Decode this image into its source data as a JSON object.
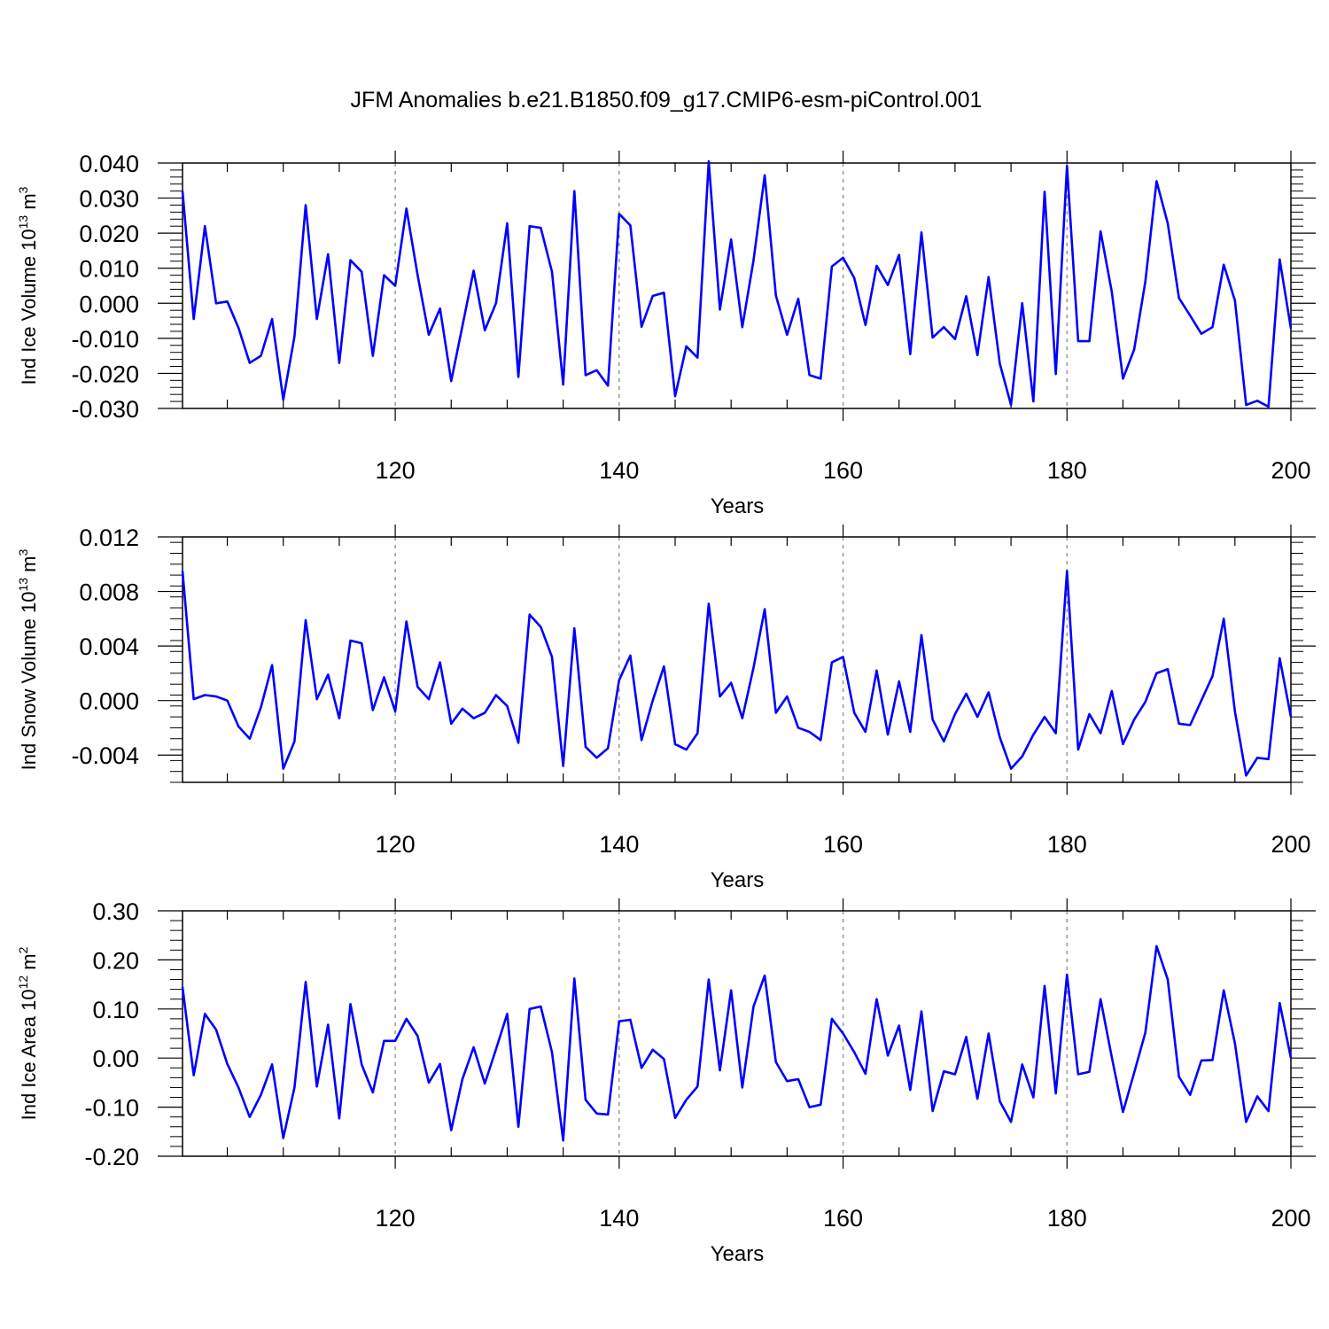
{
  "figure": {
    "title": "JFM Anomalies b.e21.B1850.f09_g17.CMIP6-esm-piControl.001"
  },
  "chart_data": [
    {
      "type": "line",
      "name": "ice-volume",
      "ylabel": "Ind Ice Volume",
      "yunits": {
        "base": "10",
        "exp": "13",
        "unit": "m",
        "unit_exp": "3"
      },
      "xlabel": "Years",
      "xlim": [
        101,
        200
      ],
      "ylim": [
        -0.03,
        0.04
      ],
      "yticks": [
        -0.03,
        -0.02,
        -0.01,
        0.0,
        0.01,
        0.02,
        0.03,
        0.04
      ],
      "ytick_labels": [
        "-0.030",
        "-0.020",
        "-0.010",
        "0.000",
        "0.010",
        "0.020",
        "0.030",
        "0.040"
      ],
      "xticks": [
        120,
        140,
        160,
        180,
        200
      ],
      "xtick_labels": [
        "120",
        "140",
        "160",
        "180",
        "200"
      ],
      "grid": "vertical dashed at x ticks",
      "line_color": "#0000ff",
      "x_start": 101,
      "values": [
        0.032,
        -0.0045,
        0.022,
        0.0,
        0.0005,
        -0.007,
        -0.017,
        -0.015,
        -0.0045,
        -0.0275,
        -0.0095,
        0.028,
        -0.0045,
        0.014,
        -0.017,
        0.0123,
        0.009,
        -0.015,
        0.008,
        0.005,
        0.027,
        0.008,
        -0.009,
        -0.0015,
        -0.0222,
        -0.0065,
        0.0093,
        -0.0077,
        0.0,
        0.0228,
        -0.021,
        0.022,
        0.0215,
        0.009,
        -0.0232,
        0.032,
        -0.0205,
        -0.0191,
        -0.0235,
        0.0255,
        0.0222,
        -0.0067,
        0.0021,
        0.003,
        -0.0265,
        -0.0123,
        -0.0155,
        0.0405,
        -0.0018,
        0.0182,
        -0.0068,
        0.0122,
        0.0365,
        0.0022,
        -0.009,
        0.0013,
        -0.0205,
        -0.0215,
        0.0105,
        0.013,
        0.0072,
        -0.0062,
        0.0107,
        0.0052,
        0.0138,
        -0.0145,
        0.0202,
        -0.0098,
        -0.0068,
        -0.0102,
        0.002,
        -0.0148,
        0.0075,
        -0.0172,
        -0.029,
        0.0,
        -0.028,
        0.0318,
        -0.0202,
        0.0392,
        -0.0108,
        -0.0108,
        0.0205,
        0.0033,
        -0.0215,
        -0.0132,
        0.0062,
        0.0348,
        0.0228,
        0.0015,
        -0.0035,
        -0.0087,
        -0.0068,
        0.011,
        0.0008,
        -0.029,
        -0.0278,
        -0.0295,
        0.0125,
        -0.0072
      ]
    },
    {
      "type": "line",
      "name": "snow-volume",
      "ylabel": "Ind Snow Volume",
      "yunits": {
        "base": "10",
        "exp": "13",
        "unit": "m",
        "unit_exp": "3"
      },
      "xlabel": "Years",
      "xlim": [
        101,
        200
      ],
      "ylim": [
        -0.006,
        0.012
      ],
      "yticks": [
        -0.004,
        0.0,
        0.004,
        0.008,
        0.012
      ],
      "ytick_labels": [
        "-0.004",
        "0.000",
        "0.004",
        "0.008",
        "0.012"
      ],
      "xticks": [
        120,
        140,
        160,
        180,
        200
      ],
      "xtick_labels": [
        "120",
        "140",
        "160",
        "180",
        "200"
      ],
      "grid": "vertical dashed at x ticks",
      "line_color": "#0000ff",
      "x_start": 101,
      "values": [
        0.0095,
        0.0001,
        0.0004,
        0.0003,
        0.0,
        -0.0019,
        -0.0028,
        -0.0005,
        0.0026,
        -0.005,
        -0.003,
        0.0059,
        0.0001,
        0.0019,
        -0.0013,
        0.0044,
        0.0042,
        -0.0007,
        0.0017,
        -0.0008,
        0.0058,
        0.001,
        0.0001,
        0.0028,
        -0.0017,
        -0.0006,
        -0.0013,
        -0.0009,
        0.0004,
        -0.0004,
        -0.0031,
        0.0063,
        0.0054,
        0.0032,
        -0.0048,
        0.0053,
        -0.0034,
        -0.0042,
        -0.0035,
        0.0015,
        0.0033,
        -0.0029,
        0.0,
        0.0025,
        -0.0032,
        -0.0036,
        -0.0024,
        0.0071,
        0.0003,
        0.0013,
        -0.0013,
        0.0024,
        0.0067,
        -0.0009,
        0.0003,
        -0.002,
        -0.0023,
        -0.0029,
        0.0028,
        0.0032,
        -0.0009,
        -0.0023,
        0.0022,
        -0.0025,
        0.0014,
        -0.0023,
        0.0048,
        -0.0014,
        -0.003,
        -0.001,
        0.0005,
        -0.0012,
        0.0006,
        -0.0027,
        -0.005,
        -0.0041,
        -0.0025,
        -0.0012,
        -0.0024,
        0.0095,
        -0.0036,
        -0.001,
        -0.0024,
        0.0007,
        -0.0032,
        -0.0014,
        -0.0001,
        0.002,
        0.0023,
        -0.0017,
        -0.0018,
        0.0,
        0.0018,
        0.006,
        -0.0008,
        -0.0055,
        -0.0042,
        -0.0043,
        0.0031,
        -0.0012
      ]
    },
    {
      "type": "line",
      "name": "ice-area",
      "ylabel": "Ind Ice Area",
      "yunits": {
        "base": "10",
        "exp": "12",
        "unit": "m",
        "unit_exp": "2"
      },
      "xlabel": "Years",
      "xlim": [
        101,
        200
      ],
      "ylim": [
        -0.2,
        0.3
      ],
      "yticks": [
        -0.2,
        -0.1,
        0.0,
        0.1,
        0.2,
        0.3
      ],
      "ytick_labels": [
        "-0.20",
        "-0.10",
        "0.00",
        "0.10",
        "0.20",
        "0.30"
      ],
      "xticks": [
        120,
        140,
        160,
        180,
        200
      ],
      "xtick_labels": [
        "120",
        "140",
        "160",
        "180",
        "200"
      ],
      "grid": "vertical dashed at x ticks",
      "line_color": "#0000ff",
      "x_start": 101,
      "values": [
        0.145,
        -0.035,
        0.09,
        0.058,
        -0.012,
        -0.06,
        -0.12,
        -0.075,
        -0.013,
        -0.163,
        -0.06,
        0.155,
        -0.058,
        0.068,
        -0.123,
        0.11,
        -0.013,
        -0.07,
        0.035,
        0.035,
        0.08,
        0.045,
        -0.05,
        -0.012,
        -0.147,
        -0.043,
        0.022,
        -0.052,
        0.018,
        0.09,
        -0.14,
        0.1,
        0.105,
        0.012,
        -0.168,
        0.162,
        -0.085,
        -0.113,
        -0.115,
        0.075,
        0.078,
        -0.02,
        0.017,
        -0.002,
        -0.122,
        -0.085,
        -0.058,
        0.16,
        -0.025,
        0.138,
        -0.06,
        0.105,
        0.168,
        -0.008,
        -0.047,
        -0.043,
        -0.1,
        -0.095,
        0.08,
        0.05,
        0.012,
        -0.032,
        0.12,
        0.005,
        0.066,
        -0.065,
        0.095,
        -0.108,
        -0.027,
        -0.033,
        0.043,
        -0.083,
        0.05,
        -0.088,
        -0.13,
        -0.013,
        -0.08,
        0.147,
        -0.072,
        0.17,
        -0.033,
        -0.028,
        0.12,
        0.002,
        -0.11,
        -0.03,
        0.052,
        0.228,
        0.16,
        -0.038,
        -0.075,
        -0.005,
        -0.004,
        0.138,
        0.03,
        -0.13,
        -0.078,
        -0.108,
        0.112,
        0.0
      ]
    }
  ]
}
